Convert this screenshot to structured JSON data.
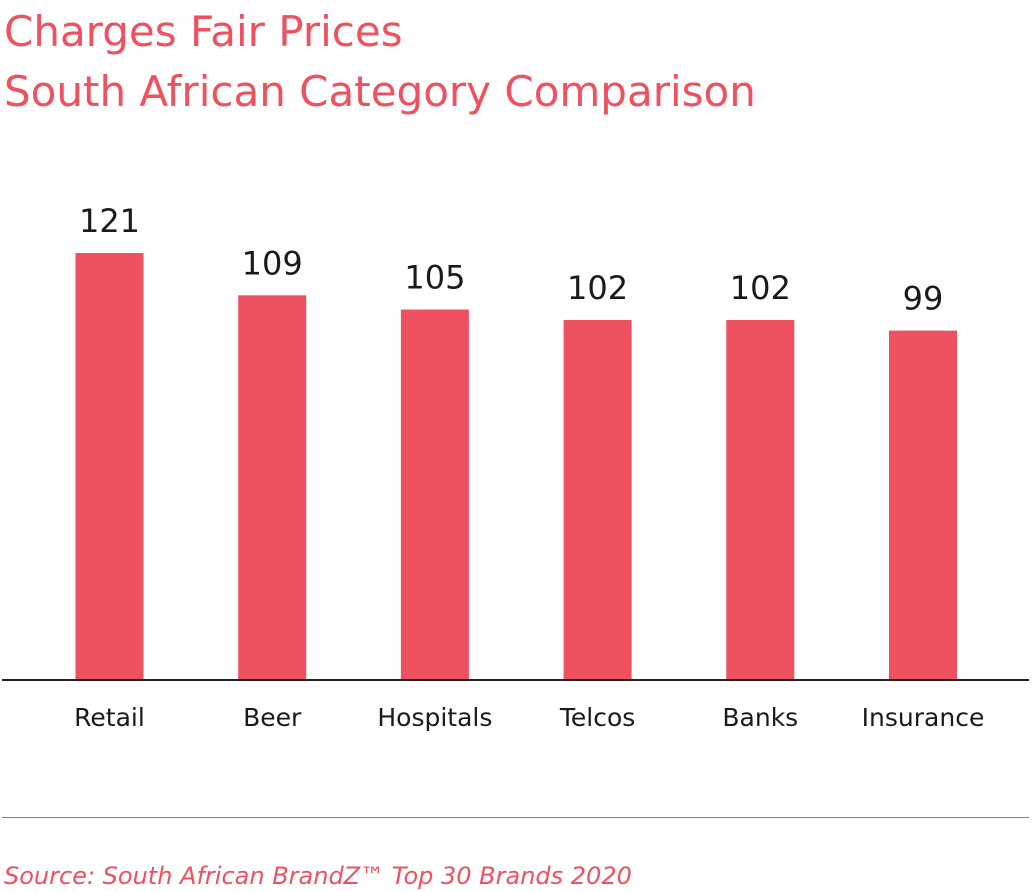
{
  "title": "Charges Fair Prices",
  "subtitle": "South African Category Comparison",
  "source": "Source: South African BrandZ™ Top 30 Brands 2020",
  "colors": {
    "accent": "#ee515f",
    "axis": "#222222",
    "text": "#1a1a1a"
  },
  "chart_data": {
    "type": "bar",
    "title": "Charges Fair Prices",
    "subtitle": "South African Category Comparison",
    "categories": [
      "Retail",
      "Beer",
      "Hospitals",
      "Telcos",
      "Banks",
      "Insurance"
    ],
    "values": [
      121,
      109,
      105,
      102,
      102,
      99
    ],
    "data_labels": [
      "121",
      "109",
      "105",
      "102",
      "102",
      "99"
    ],
    "xlabel": "",
    "ylabel": "",
    "ylim": [
      0,
      121
    ],
    "grid": false,
    "legend": "none",
    "bar_color": "#ee515f"
  }
}
